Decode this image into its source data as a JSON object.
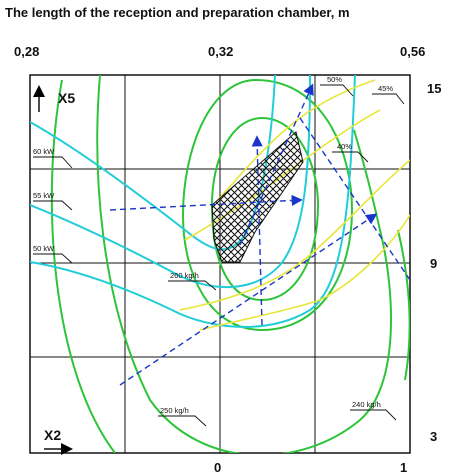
{
  "chart_data": {
    "type": "contour",
    "title": "The length of the reception and preparation chamber, m",
    "top_axis_ticks": [
      "0,28",
      "0,32",
      "0,56"
    ],
    "bottom_axis_ticks": [
      "0",
      "1"
    ],
    "right_axis_ticks": [
      "15",
      "9",
      "3"
    ],
    "y_axis_label": "X5",
    "x_axis_label": "X2",
    "contour_labels": {
      "power": [
        "60 kW",
        "55 kW",
        "50 kW"
      ],
      "throughput": [
        "260 kg/h",
        "250 kg/h",
        "240 kg/h"
      ],
      "percent": [
        "50%",
        "45%",
        "40%"
      ]
    },
    "series": [
      {
        "name": "60 kW",
        "group": "power"
      },
      {
        "name": "55 kW",
        "group": "power"
      },
      {
        "name": "50 kW",
        "group": "power"
      },
      {
        "name": "260 kg/h",
        "group": "throughput"
      },
      {
        "name": "250 kg/h",
        "group": "throughput"
      },
      {
        "name": "240 kg/h",
        "group": "throughput"
      },
      {
        "name": "50%",
        "group": "percent"
      },
      {
        "name": "45%",
        "group": "percent"
      },
      {
        "name": "40%",
        "group": "percent"
      }
    ],
    "colors": {
      "power": "#22cdd8",
      "throughput": "#2ec43a",
      "percent": "#e8e63a",
      "optimum_region": "#000000",
      "direction_arrows": "#1a36c8"
    },
    "grid": true
  }
}
